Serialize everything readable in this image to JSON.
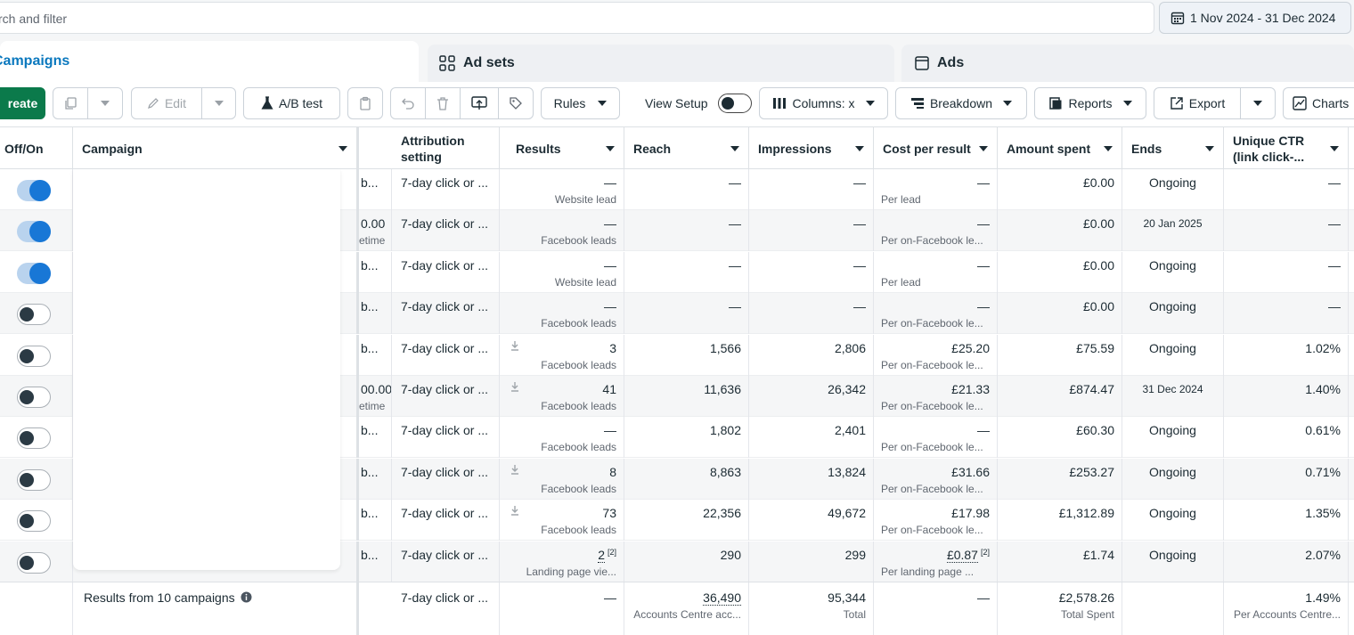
{
  "search": {
    "placeholder": "rch and filter"
  },
  "date_range": {
    "label": "1 Nov 2024 - 31 Dec 2024"
  },
  "tabs": [
    {
      "label": "Campaigns"
    },
    {
      "label": "Ad sets"
    },
    {
      "label": "Ads"
    }
  ],
  "toolbar": {
    "create": "reate",
    "edit": "Edit",
    "ab_test": "A/B test",
    "rules": "Rules",
    "view_setup": "View Setup",
    "columns": "Columns: x",
    "breakdown": "Breakdown",
    "reports": "Reports",
    "export": "Export",
    "charts": "Charts"
  },
  "headers": {
    "off_on": "Off/On",
    "campaign": "Campaign",
    "attribution": "Attribution setting",
    "results": "Results",
    "reach": "Reach",
    "impressions": "Impressions",
    "cost_per_result": "Cost per result",
    "amount_spent": "Amount spent",
    "ends": "Ends",
    "unique_ctr": "Unique CTR (link click-..."
  },
  "rows": [
    {
      "on": true,
      "budget": "b...",
      "budget_sub": "",
      "attribution": "7-day click or ...",
      "results": "—",
      "results_sub": "Website lead",
      "download": false,
      "badge": "",
      "reach": "—",
      "impressions": "—",
      "cpr": "—",
      "cpr_sub": "Per lead",
      "cpr_badge": "",
      "spent": "£0.00",
      "ends": "Ongoing",
      "ends_small": false,
      "ctr": "—"
    },
    {
      "on": true,
      "budget": "0.00",
      "budget_sub": "etime",
      "attribution": "7-day click or ...",
      "results": "—",
      "results_sub": "Facebook leads",
      "download": false,
      "badge": "",
      "reach": "—",
      "impressions": "—",
      "cpr": "—",
      "cpr_sub": "Per on-Facebook le...",
      "cpr_badge": "",
      "spent": "£0.00",
      "ends": "20 Jan 2025",
      "ends_small": true,
      "ctr": "—"
    },
    {
      "on": true,
      "budget": "b...",
      "budget_sub": "",
      "attribution": "7-day click or ...",
      "results": "—",
      "results_sub": "Website lead",
      "download": false,
      "badge": "",
      "reach": "—",
      "impressions": "—",
      "cpr": "—",
      "cpr_sub": "Per lead",
      "cpr_badge": "",
      "spent": "£0.00",
      "ends": "Ongoing",
      "ends_small": false,
      "ctr": "—"
    },
    {
      "on": false,
      "budget": "b...",
      "budget_sub": "",
      "attribution": "7-day click or ...",
      "results": "—",
      "results_sub": "Facebook leads",
      "download": false,
      "badge": "",
      "reach": "—",
      "impressions": "—",
      "cpr": "—",
      "cpr_sub": "Per on-Facebook le...",
      "cpr_badge": "",
      "spent": "£0.00",
      "ends": "Ongoing",
      "ends_small": false,
      "ctr": "—"
    },
    {
      "on": false,
      "budget": "b...",
      "budget_sub": "",
      "attribution": "7-day click or ...",
      "results": "3",
      "results_sub": "Facebook leads",
      "download": true,
      "badge": "",
      "reach": "1,566",
      "impressions": "2,806",
      "cpr": "£25.20",
      "cpr_sub": "Per on-Facebook le...",
      "cpr_badge": "",
      "spent": "£75.59",
      "ends": "Ongoing",
      "ends_small": false,
      "ctr": "1.02%"
    },
    {
      "on": false,
      "budget": "00.00",
      "budget_sub": "etime",
      "attribution": "7-day click or ...",
      "results": "41",
      "results_sub": "Facebook leads",
      "download": true,
      "badge": "",
      "reach": "11,636",
      "impressions": "26,342",
      "cpr": "£21.33",
      "cpr_sub": "Per on-Facebook le...",
      "cpr_badge": "",
      "spent": "£874.47",
      "ends": "31 Dec 2024",
      "ends_small": true,
      "ctr": "1.40%"
    },
    {
      "on": false,
      "budget": "b...",
      "budget_sub": "",
      "attribution": "7-day click or ...",
      "results": "—",
      "results_sub": "Facebook leads",
      "download": false,
      "badge": "",
      "reach": "1,802",
      "impressions": "2,401",
      "cpr": "—",
      "cpr_sub": "Per on-Facebook le...",
      "cpr_badge": "",
      "spent": "£60.30",
      "ends": "Ongoing",
      "ends_small": false,
      "ctr": "0.61%"
    },
    {
      "on": false,
      "budget": "b...",
      "budget_sub": "",
      "attribution": "7-day click or ...",
      "results": "8",
      "results_sub": "Facebook leads",
      "download": true,
      "badge": "",
      "reach": "8,863",
      "impressions": "13,824",
      "cpr": "£31.66",
      "cpr_sub": "Per on-Facebook le...",
      "cpr_badge": "",
      "spent": "£253.27",
      "ends": "Ongoing",
      "ends_small": false,
      "ctr": "0.71%"
    },
    {
      "on": false,
      "budget": "b...",
      "budget_sub": "",
      "attribution": "7-day click or ...",
      "results": "73",
      "results_sub": "Facebook leads",
      "download": true,
      "badge": "",
      "reach": "22,356",
      "impressions": "49,672",
      "cpr": "£17.98",
      "cpr_sub": "Per on-Facebook le...",
      "cpr_badge": "",
      "spent": "£1,312.89",
      "ends": "Ongoing",
      "ends_small": false,
      "ctr": "1.35%"
    },
    {
      "on": false,
      "budget": "b...",
      "budget_sub": "",
      "attribution": "7-day click or ...",
      "results": "2",
      "results_sub": "Landing page vie...",
      "download": false,
      "badge": "[2]",
      "reach": "290",
      "impressions": "299",
      "cpr": "£0.87",
      "cpr_sub": "Per landing page ...",
      "cpr_badge": "[2]",
      "spent": "£1.74",
      "ends": "Ongoing",
      "ends_small": false,
      "ctr": "2.07%"
    }
  ],
  "footer": {
    "label": "Results from 10 campaigns",
    "attribution": "7-day click or ...",
    "results": "—",
    "reach": "36,490",
    "reach_sub": "Accounts Centre acc...",
    "impressions": "95,344",
    "impressions_sub": "Total",
    "cpr": "—",
    "spent": "£2,578.26",
    "spent_sub": "Total Spent",
    "ctr": "1.49%",
    "ctr_sub": "Per Accounts Centre..."
  },
  "colors": {
    "accent": "#0a78be",
    "create_green": "#0b7a4b",
    "toggle_on": "#1877d6"
  }
}
